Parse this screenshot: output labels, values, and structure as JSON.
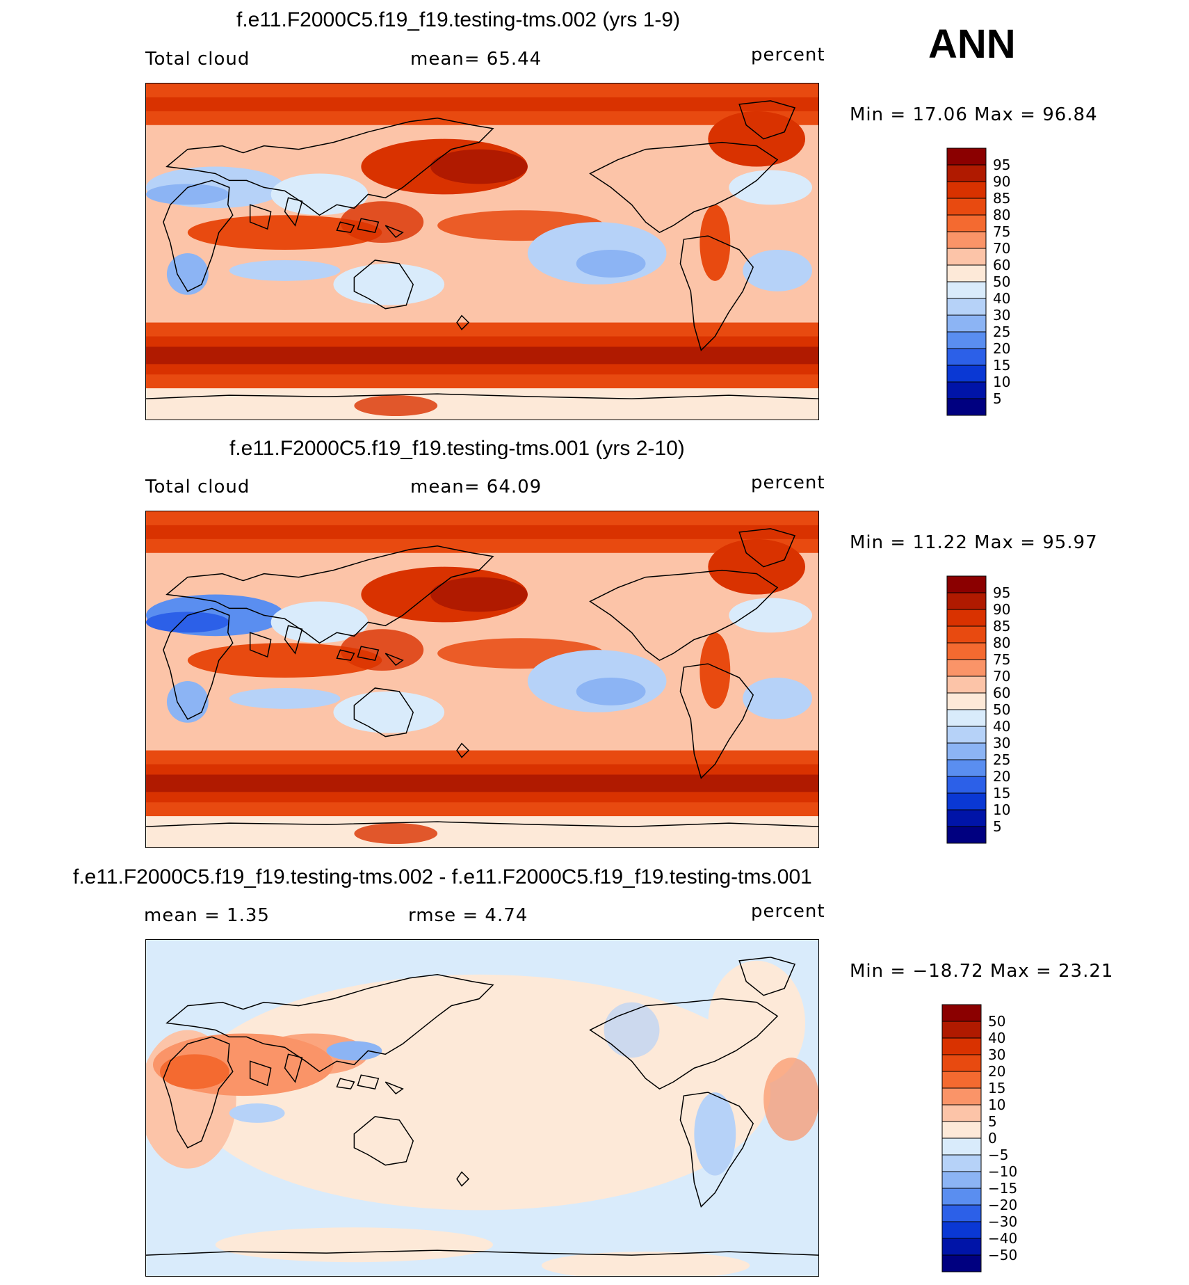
{
  "season": "ANN",
  "panels": [
    {
      "title": "f.e11.F2000C5.f19_f19.testing-tms.002 (yrs 1-9)",
      "left_label": "Total cloud",
      "center_label": "mean=   65.44",
      "right_label": "percent",
      "minmax": "Min =   17.06 Max =   96.84",
      "field": "abs",
      "legend_levels": [
        "95",
        "90",
        "85",
        "80",
        "75",
        "70",
        "60",
        "50",
        "40",
        "30",
        "25",
        "20",
        "15",
        "10",
        "5"
      ]
    },
    {
      "title": "f.e11.F2000C5.f19_f19.testing-tms.001 (yrs 2-10)",
      "left_label": "Total cloud",
      "center_label": "mean=   64.09",
      "right_label": "percent",
      "minmax": "Min =   11.22 Max =   95.97",
      "field": "abs",
      "legend_levels": [
        "95",
        "90",
        "85",
        "80",
        "75",
        "70",
        "60",
        "50",
        "40",
        "30",
        "25",
        "20",
        "15",
        "10",
        "5"
      ]
    },
    {
      "title": "f.e11.F2000C5.f19_f19.testing-tms.002 - f.e11.F2000C5.f19_f19.testing-tms.001",
      "left_label": "mean =    1.35",
      "center_label": "rmse =    4.74",
      "right_label": "percent",
      "minmax": "Min = −18.72 Max =   23.21",
      "field": "diff",
      "legend_levels": [
        "50",
        "40",
        "30",
        "20",
        "15",
        "10",
        "5",
        "0",
        "−5",
        "−10",
        "−15",
        "−20",
        "−30",
        "−40",
        "−50"
      ]
    }
  ],
  "colors": {
    "abs_bins": [
      "#8b0000",
      "#b01a00",
      "#d93200",
      "#e84a10",
      "#f46a30",
      "#fa9468",
      "#fcc4a8",
      "#fde9d8",
      "#d9ebfb",
      "#b6d2f8",
      "#8cb4f4",
      "#5a8ef0",
      "#2c60e8",
      "#0a38d4",
      "#0014a8",
      "#000080"
    ],
    "diff_bins": [
      "#8b0000",
      "#b01a00",
      "#d93200",
      "#e84a10",
      "#f46a30",
      "#fa9468",
      "#fcc4a8",
      "#fde9d8",
      "#d9ebfb",
      "#b6d2f8",
      "#8cb4f4",
      "#5a8ef0",
      "#2c60e8",
      "#0a38d4",
      "#0014a8",
      "#000080"
    ],
    "coastline": "#000000"
  }
}
